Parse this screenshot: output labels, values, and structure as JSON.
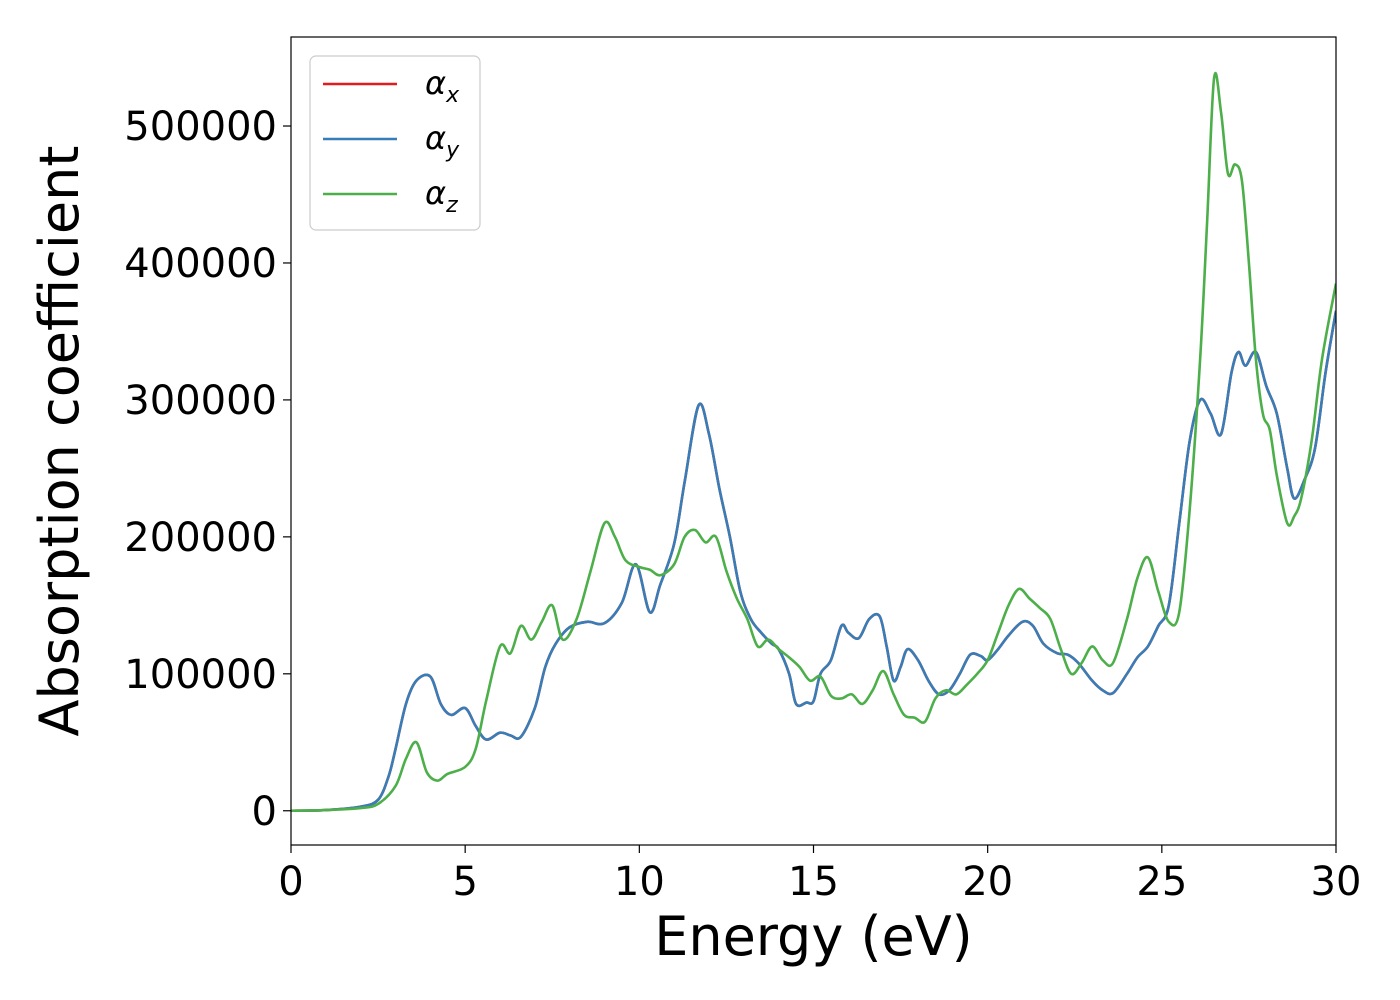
{
  "chart_data": {
    "type": "line",
    "xlabel": "Energy (eV)",
    "ylabel": "Absorption coefficient",
    "xlim": [
      0,
      30
    ],
    "ylim": [
      -25000,
      565000
    ],
    "xticks": [
      0,
      5,
      10,
      15,
      20,
      25,
      30
    ],
    "yticks": [
      0,
      100000,
      200000,
      300000,
      400000,
      500000
    ],
    "grid": false,
    "legend_position": "top-left",
    "series": [
      {
        "name": "αx",
        "base": "α",
        "sub": "x",
        "color": "#e41a1c",
        "x": [
          0,
          1,
          2,
          2.5,
          2.8,
          3.0,
          3.3,
          3.6,
          4.0,
          4.3,
          4.6,
          5.0,
          5.3,
          5.6,
          6.0,
          6.3,
          6.6,
          7.0,
          7.3,
          7.6,
          8.0,
          8.5,
          9.0,
          9.5,
          9.9,
          10.3,
          10.6,
          11.0,
          11.3,
          11.7,
          12.0,
          12.3,
          12.6,
          12.9,
          13.2,
          13.5,
          13.8,
          14.0,
          14.3,
          14.5,
          14.8,
          15.0,
          15.2,
          15.5,
          15.8,
          16.0,
          16.3,
          16.6,
          16.9,
          17.1,
          17.3,
          17.5,
          17.7,
          18.0,
          18.3,
          18.6,
          18.9,
          19.2,
          19.5,
          19.8,
          20.0,
          20.3,
          20.6,
          21.0,
          21.3,
          21.6,
          22.0,
          22.3,
          22.6,
          23.0,
          23.3,
          23.6,
          24.0,
          24.3,
          24.6,
          24.9,
          25.2,
          25.5,
          25.8,
          26.1,
          26.4,
          26.7,
          27.0,
          27.2,
          27.4,
          27.7,
          28.0,
          28.3,
          28.6,
          28.8,
          29.1,
          29.4,
          29.7,
          30.0
        ],
        "y": [
          0,
          500,
          3000,
          8000,
          25000,
          45000,
          78000,
          95000,
          98000,
          78000,
          70000,
          75000,
          62000,
          52000,
          57000,
          55000,
          54000,
          75000,
          105000,
          122000,
          134000,
          138000,
          137000,
          152000,
          180000,
          145000,
          165000,
          195000,
          240000,
          296000,
          275000,
          235000,
          200000,
          160000,
          140000,
          130000,
          122000,
          118000,
          100000,
          78000,
          79000,
          80000,
          100000,
          110000,
          135000,
          130000,
          126000,
          140000,
          142000,
          120000,
          95000,
          105000,
          118000,
          110000,
          95000,
          85000,
          88000,
          100000,
          114000,
          113000,
          110000,
          118000,
          128000,
          138000,
          135000,
          122000,
          115000,
          114000,
          108000,
          95000,
          88000,
          86000,
          100000,
          112000,
          120000,
          135000,
          150000,
          210000,
          270000,
          300000,
          290000,
          275000,
          320000,
          335000,
          325000,
          335000,
          310000,
          290000,
          250000,
          228000,
          242000,
          265000,
          320000,
          365000
        ]
      },
      {
        "name": "αy",
        "base": "α",
        "sub": "y",
        "color": "#377eb8",
        "x": [
          0,
          1,
          2,
          2.5,
          2.8,
          3.0,
          3.3,
          3.6,
          4.0,
          4.3,
          4.6,
          5.0,
          5.3,
          5.6,
          6.0,
          6.3,
          6.6,
          7.0,
          7.3,
          7.6,
          8.0,
          8.5,
          9.0,
          9.5,
          9.9,
          10.3,
          10.6,
          11.0,
          11.3,
          11.7,
          12.0,
          12.3,
          12.6,
          12.9,
          13.2,
          13.5,
          13.8,
          14.0,
          14.3,
          14.5,
          14.8,
          15.0,
          15.2,
          15.5,
          15.8,
          16.0,
          16.3,
          16.6,
          16.9,
          17.1,
          17.3,
          17.5,
          17.7,
          18.0,
          18.3,
          18.6,
          18.9,
          19.2,
          19.5,
          19.8,
          20.0,
          20.3,
          20.6,
          21.0,
          21.3,
          21.6,
          22.0,
          22.3,
          22.6,
          23.0,
          23.3,
          23.6,
          24.0,
          24.3,
          24.6,
          24.9,
          25.2,
          25.5,
          25.8,
          26.1,
          26.4,
          26.7,
          27.0,
          27.2,
          27.4,
          27.7,
          28.0,
          28.3,
          28.6,
          28.8,
          29.1,
          29.4,
          29.7,
          30.0
        ],
        "y": [
          0,
          500,
          3000,
          8000,
          25000,
          45000,
          78000,
          95000,
          98000,
          78000,
          70000,
          75000,
          62000,
          52000,
          57000,
          55000,
          54000,
          75000,
          105000,
          122000,
          134000,
          138000,
          137000,
          152000,
          180000,
          145000,
          165000,
          195000,
          240000,
          296000,
          275000,
          235000,
          200000,
          160000,
          140000,
          130000,
          122000,
          118000,
          100000,
          78000,
          79000,
          80000,
          100000,
          110000,
          135000,
          130000,
          126000,
          140000,
          142000,
          120000,
          95000,
          105000,
          118000,
          110000,
          95000,
          85000,
          88000,
          100000,
          114000,
          113000,
          110000,
          118000,
          128000,
          138000,
          135000,
          122000,
          115000,
          114000,
          108000,
          95000,
          88000,
          86000,
          100000,
          112000,
          120000,
          135000,
          150000,
          210000,
          270000,
          300000,
          290000,
          275000,
          320000,
          335000,
          325000,
          335000,
          310000,
          290000,
          250000,
          228000,
          242000,
          265000,
          320000,
          365000
        ]
      },
      {
        "name": "αz",
        "base": "α",
        "sub": "z",
        "color": "#4daf4a",
        "x": [
          0,
          1,
          2,
          2.5,
          3.0,
          3.3,
          3.6,
          3.9,
          4.2,
          4.5,
          5.0,
          5.3,
          5.6,
          6.0,
          6.3,
          6.6,
          6.9,
          7.2,
          7.5,
          7.8,
          8.2,
          8.6,
          9.0,
          9.3,
          9.6,
          10.0,
          10.3,
          10.6,
          11.0,
          11.3,
          11.6,
          11.9,
          12.2,
          12.5,
          12.8,
          13.1,
          13.4,
          13.7,
          14.0,
          14.3,
          14.6,
          14.9,
          15.2,
          15.5,
          15.8,
          16.1,
          16.4,
          16.7,
          17.0,
          17.3,
          17.6,
          17.9,
          18.2,
          18.5,
          18.8,
          19.1,
          19.4,
          19.7,
          20.0,
          20.3,
          20.6,
          20.9,
          21.2,
          21.5,
          21.8,
          22.1,
          22.4,
          22.7,
          23.0,
          23.3,
          23.6,
          24.0,
          24.3,
          24.6,
          24.9,
          25.2,
          25.5,
          25.8,
          26.1,
          26.3,
          26.5,
          26.7,
          26.9,
          27.1,
          27.3,
          27.5,
          27.7,
          27.9,
          28.1,
          28.3,
          28.6,
          28.8,
          29.0,
          29.3,
          29.6,
          30.0
        ],
        "y": [
          0,
          500,
          2000,
          5000,
          18000,
          38000,
          50000,
          28000,
          22000,
          27000,
          32000,
          45000,
          80000,
          120000,
          115000,
          135000,
          125000,
          138000,
          150000,
          125000,
          140000,
          175000,
          210000,
          200000,
          183000,
          178000,
          176000,
          172000,
          180000,
          200000,
          205000,
          196000,
          200000,
          175000,
          155000,
          140000,
          120000,
          125000,
          118000,
          112000,
          105000,
          95000,
          98000,
          84000,
          82000,
          85000,
          78000,
          88000,
          102000,
          85000,
          70000,
          68000,
          65000,
          82000,
          88000,
          85000,
          92000,
          100000,
          110000,
          130000,
          150000,
          162000,
          155000,
          148000,
          140000,
          118000,
          100000,
          108000,
          120000,
          110000,
          108000,
          140000,
          170000,
          185000,
          160000,
          138000,
          145000,
          220000,
          330000,
          430000,
          535000,
          510000,
          465000,
          472000,
          460000,
          400000,
          330000,
          290000,
          278000,
          245000,
          210000,
          215000,
          228000,
          270000,
          330000,
          385000
        ]
      }
    ]
  }
}
